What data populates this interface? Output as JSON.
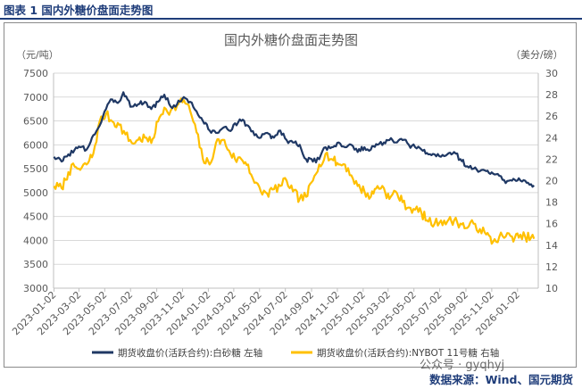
{
  "figure_header": "图表 1  国内外糖价盘面走势图",
  "source_text": "数据来源：Wind、国元期货",
  "watermark": "公众号 · gyqhyj",
  "colors": {
    "left_series": "#1f3864",
    "right_series": "#ffc000",
    "header": "#1f3d7a"
  },
  "chart_data": {
    "type": "line",
    "title": "国内外糖价盘面走势图",
    "left_unit": "（元/吨）",
    "right_unit": "（美分/磅）",
    "y_left": {
      "min": 3000,
      "max": 7500,
      "step": 500,
      "ticks": [
        "3000",
        "3500",
        "4000",
        "4500",
        "5000",
        "5500",
        "6000",
        "6500",
        "7000",
        "7500"
      ]
    },
    "y_right": {
      "min": 10,
      "max": 30,
      "step": 2,
      "ticks": [
        "10",
        "12",
        "14",
        "16",
        "18",
        "20",
        "22",
        "24",
        "26",
        "28",
        "30"
      ]
    },
    "x_range": [
      "2023-01-01",
      "2026-02-20"
    ],
    "x_ticks": [
      "2023-01-02",
      "2023-03-02",
      "2023-05-02",
      "2023-07-02",
      "2023-09-02",
      "2023-11-02",
      "2024-01-02",
      "2024-03-02",
      "2024-05-02",
      "2024-07-02",
      "2024-09-02",
      "2024-11-02",
      "2025-01-02",
      "2025-03-02",
      "2025-05-02",
      "2025-07-02",
      "2025-09-02",
      "2025-11-02",
      "2026-01-02"
    ],
    "legend_position": "bottom",
    "series": [
      {
        "name": "期货收盘价(活跃合约):白砂糖  左轴",
        "axis": "left",
        "points": [
          [
            "2023-01-02",
            5750
          ],
          [
            "2023-01-20",
            5650
          ],
          [
            "2023-02-05",
            5800
          ],
          [
            "2023-02-20",
            5900
          ],
          [
            "2023-03-05",
            5950
          ],
          [
            "2023-03-20",
            5900
          ],
          [
            "2023-04-05",
            6200
          ],
          [
            "2023-04-20",
            6400
          ],
          [
            "2023-05-05",
            6750
          ],
          [
            "2023-05-20",
            6950
          ],
          [
            "2023-06-05",
            6900
          ],
          [
            "2023-06-15",
            7100
          ],
          [
            "2023-06-25",
            6950
          ],
          [
            "2023-07-05",
            6800
          ],
          [
            "2023-07-20",
            6850
          ],
          [
            "2023-08-05",
            6900
          ],
          [
            "2023-08-20",
            6750
          ],
          [
            "2023-09-05",
            6900
          ],
          [
            "2023-09-20",
            7050
          ],
          [
            "2023-10-05",
            6800
          ],
          [
            "2023-10-20",
            6850
          ],
          [
            "2023-11-05",
            7000
          ],
          [
            "2023-11-20",
            6900
          ],
          [
            "2023-12-05",
            6700
          ],
          [
            "2023-12-20",
            6500
          ],
          [
            "2024-01-05",
            6300
          ],
          [
            "2024-01-20",
            6250
          ],
          [
            "2024-02-05",
            6350
          ],
          [
            "2024-02-20",
            6300
          ],
          [
            "2024-03-05",
            6450
          ],
          [
            "2024-03-20",
            6500
          ],
          [
            "2024-04-05",
            6400
          ],
          [
            "2024-04-20",
            6200
          ],
          [
            "2024-05-05",
            6150
          ],
          [
            "2024-05-20",
            6250
          ],
          [
            "2024-06-05",
            6150
          ],
          [
            "2024-06-20",
            6300
          ],
          [
            "2024-07-05",
            6100
          ],
          [
            "2024-07-20",
            6050
          ],
          [
            "2024-08-05",
            6000
          ],
          [
            "2024-08-20",
            5700
          ],
          [
            "2024-09-05",
            5650
          ],
          [
            "2024-09-20",
            5700
          ],
          [
            "2024-10-05",
            5950
          ],
          [
            "2024-10-20",
            5950
          ],
          [
            "2024-11-05",
            6050
          ],
          [
            "2024-11-20",
            5950
          ],
          [
            "2024-12-05",
            6000
          ],
          [
            "2024-12-20",
            5850
          ],
          [
            "2025-01-05",
            5950
          ],
          [
            "2025-01-20",
            5900
          ],
          [
            "2025-02-05",
            6000
          ],
          [
            "2025-02-20",
            6050
          ],
          [
            "2025-03-05",
            6100
          ],
          [
            "2025-03-20",
            6050
          ],
          [
            "2025-04-05",
            6100
          ],
          [
            "2025-04-20",
            6000
          ],
          [
            "2025-05-05",
            5950
          ],
          [
            "2025-05-20",
            5900
          ],
          [
            "2025-06-05",
            5800
          ],
          [
            "2025-06-20",
            5800
          ],
          [
            "2025-07-05",
            5750
          ],
          [
            "2025-07-20",
            5800
          ],
          [
            "2025-08-05",
            5850
          ],
          [
            "2025-08-20",
            5700
          ],
          [
            "2025-09-05",
            5550
          ],
          [
            "2025-09-20",
            5500
          ],
          [
            "2025-10-05",
            5450
          ],
          [
            "2025-10-20",
            5450
          ],
          [
            "2025-11-05",
            5400
          ],
          [
            "2025-11-20",
            5350
          ],
          [
            "2025-12-05",
            5200
          ],
          [
            "2025-12-20",
            5250
          ],
          [
            "2026-01-05",
            5300
          ],
          [
            "2026-01-20",
            5250
          ],
          [
            "2026-02-10",
            5150
          ]
        ]
      },
      {
        "name": "期货收盘价(活跃合约):NYBOT 11号糖  右轴",
        "axis": "right",
        "points": [
          [
            "2023-01-02",
            19.5
          ],
          [
            "2023-01-20",
            19.3
          ],
          [
            "2023-02-05",
            20.8
          ],
          [
            "2023-02-20",
            21.3
          ],
          [
            "2023-03-05",
            21.0
          ],
          [
            "2023-03-20",
            21.5
          ],
          [
            "2023-04-05",
            22.5
          ],
          [
            "2023-04-20",
            25.5
          ],
          [
            "2023-05-05",
            26.2
          ],
          [
            "2023-05-20",
            25.5
          ],
          [
            "2023-06-05",
            25.2
          ],
          [
            "2023-06-20",
            24.3
          ],
          [
            "2023-07-05",
            23.5
          ],
          [
            "2023-07-20",
            23.8
          ],
          [
            "2023-08-05",
            24.0
          ],
          [
            "2023-08-20",
            23.5
          ],
          [
            "2023-09-05",
            25.5
          ],
          [
            "2023-09-20",
            26.8
          ],
          [
            "2023-10-05",
            26.5
          ],
          [
            "2023-10-20",
            27.0
          ],
          [
            "2023-11-05",
            27.5
          ],
          [
            "2023-11-20",
            26.5
          ],
          [
            "2023-12-05",
            24.5
          ],
          [
            "2023-12-20",
            22.0
          ],
          [
            "2024-01-05",
            21.5
          ],
          [
            "2024-01-20",
            23.5
          ],
          [
            "2024-02-05",
            23.8
          ],
          [
            "2024-02-20",
            22.8
          ],
          [
            "2024-03-05",
            22.0
          ],
          [
            "2024-03-20",
            22.0
          ],
          [
            "2024-04-05",
            21.5
          ],
          [
            "2024-04-20",
            19.8
          ],
          [
            "2024-05-05",
            19.0
          ],
          [
            "2024-05-20",
            18.8
          ],
          [
            "2024-06-05",
            19.2
          ],
          [
            "2024-06-20",
            19.5
          ],
          [
            "2024-07-05",
            20.0
          ],
          [
            "2024-07-20",
            19.0
          ],
          [
            "2024-08-05",
            18.3
          ],
          [
            "2024-08-20",
            18.5
          ],
          [
            "2024-09-05",
            20.0
          ],
          [
            "2024-09-20",
            21.5
          ],
          [
            "2024-10-05",
            22.5
          ],
          [
            "2024-10-20",
            22.0
          ],
          [
            "2024-11-05",
            21.5
          ],
          [
            "2024-11-20",
            21.5
          ],
          [
            "2024-12-05",
            20.5
          ],
          [
            "2024-12-20",
            19.5
          ],
          [
            "2025-01-05",
            19.0
          ],
          [
            "2025-01-20",
            18.5
          ],
          [
            "2025-02-05",
            19.5
          ],
          [
            "2025-02-20",
            19.3
          ],
          [
            "2025-03-05",
            18.3
          ],
          [
            "2025-03-20",
            19.0
          ],
          [
            "2025-04-05",
            18.0
          ],
          [
            "2025-04-20",
            17.5
          ],
          [
            "2025-05-05",
            17.3
          ],
          [
            "2025-05-20",
            17.0
          ],
          [
            "2025-06-05",
            16.2
          ],
          [
            "2025-06-20",
            16.0
          ],
          [
            "2025-07-05",
            16.3
          ],
          [
            "2025-07-20",
            16.2
          ],
          [
            "2025-08-05",
            16.3
          ],
          [
            "2025-08-20",
            16.0
          ],
          [
            "2025-09-05",
            15.6
          ],
          [
            "2025-09-20",
            16.0
          ],
          [
            "2025-10-05",
            15.5
          ],
          [
            "2025-10-20",
            15.0
          ],
          [
            "2025-11-05",
            14.3
          ],
          [
            "2025-11-20",
            14.8
          ],
          [
            "2025-12-05",
            14.8
          ],
          [
            "2025-12-20",
            14.8
          ],
          [
            "2026-01-05",
            14.7
          ],
          [
            "2026-01-20",
            14.8
          ],
          [
            "2026-02-10",
            14.6
          ]
        ]
      }
    ]
  }
}
